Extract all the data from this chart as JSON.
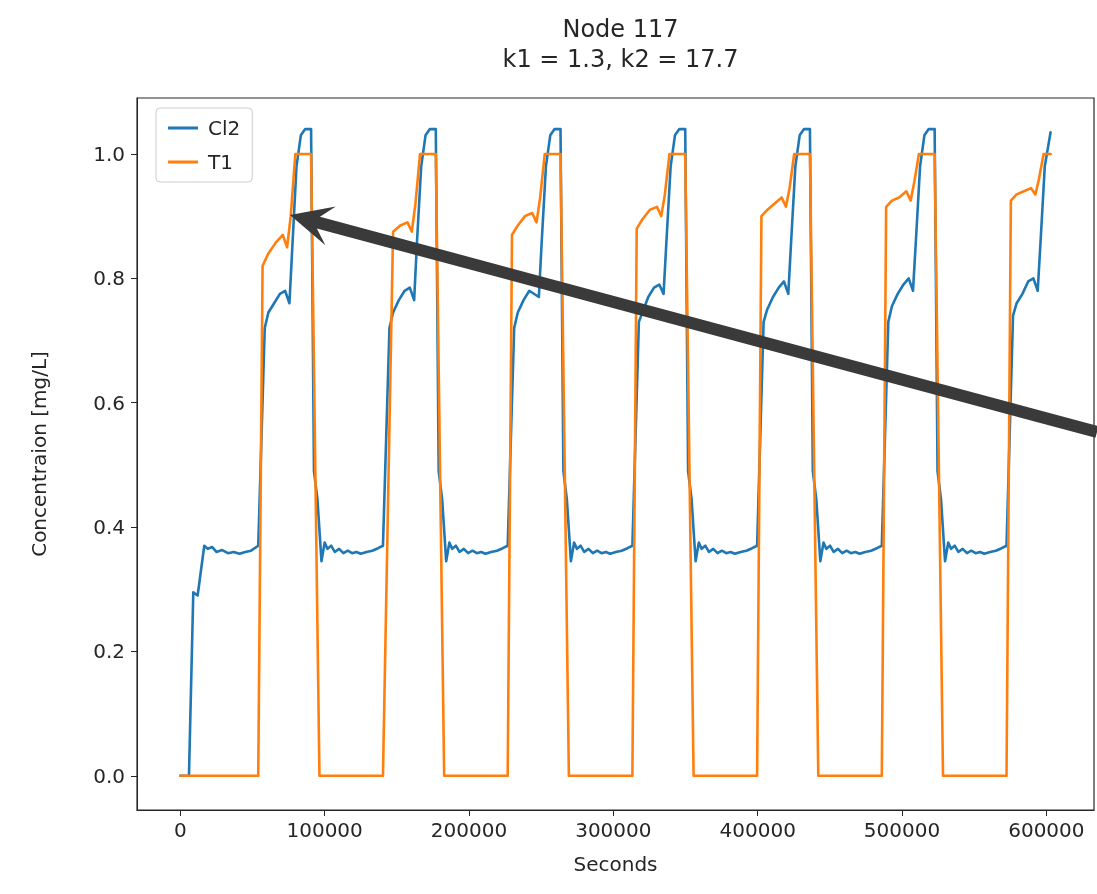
{
  "chart_data": {
    "type": "line",
    "title": "Node 117",
    "subtitle": "k1 = 1.3, k2 = 17.7",
    "xlabel": "Seconds",
    "ylabel": "Concentraion [mg/L]",
    "xlim": [
      -30000,
      633000
    ],
    "ylim": [
      -0.055,
      1.09
    ],
    "xticks": [
      0,
      100000,
      200000,
      300000,
      400000,
      500000,
      600000
    ],
    "yticks": [
      {
        "value": 0,
        "label": "0.0"
      },
      {
        "value": 0.2,
        "label": "0.2"
      },
      {
        "value": 0.4,
        "label": "0.4"
      },
      {
        "value": 0.6,
        "label": "0.6"
      },
      {
        "value": 0.8,
        "label": "0.8"
      },
      {
        "value": 1,
        "label": "1.0"
      }
    ],
    "grid": false,
    "legend": "top left",
    "marker": "none",
    "line_style": "solid",
    "series": [
      {
        "name": "Cl2",
        "color": "#1f77b4",
        "x": [
          0,
          6000,
          9000,
          12000,
          16600,
          19000,
          22000,
          25000,
          29000,
          33000,
          37000,
          41000,
          45000,
          49000,
          54000,
          58500,
          61000,
          65000,
          69000,
          72600,
          75600,
          77600,
          80500,
          83500,
          86500,
          90600,
          92600,
          95000,
          97800,
          100000,
          102000,
          104500,
          107000,
          110000,
          113000,
          116000,
          119000,
          122000,
          125000,
          129000,
          133000,
          137000,
          140400,
          144900,
          147400,
          151400,
          155400,
          159000,
          162000,
          164000,
          166900,
          169900,
          172900,
          177000,
          179000,
          181400,
          184200,
          186400,
          188400,
          190900,
          193400,
          196400,
          199400,
          202400,
          205400,
          208400,
          211400,
          215400,
          219400,
          223400,
          226800,
          231300,
          233800,
          237800,
          241800,
          245400,
          248400,
          250400,
          253300,
          256300,
          259300,
          263400,
          265400,
          267800,
          270600,
          272800,
          274800,
          277300,
          279800,
          282800,
          285800,
          288800,
          291800,
          294800,
          297800,
          301800,
          305800,
          309800,
          313200,
          317700,
          320200,
          324200,
          328200,
          331800,
          334800,
          336800,
          339700,
          342700,
          345700,
          349800,
          351800,
          354200,
          357000,
          359200,
          361200,
          363700,
          366200,
          369200,
          372200,
          375200,
          378200,
          381200,
          384200,
          388200,
          392200,
          396200,
          399600,
          404100,
          406600,
          410600,
          414600,
          418200,
          421200,
          423200,
          426100,
          429100,
          432100,
          436200,
          438200,
          440600,
          443400,
          445600,
          447600,
          450100,
          452600,
          455600,
          458600,
          461600,
          464600,
          467600,
          470600,
          474600,
          478600,
          482600,
          486000,
          490500,
          493000,
          497000,
          501000,
          504600,
          507600,
          509600,
          512500,
          515500,
          518500,
          522600,
          524600,
          527000,
          529800,
          532000,
          534000,
          536500,
          539000,
          542000,
          545000,
          548000,
          551000,
          554000,
          557000,
          561000,
          565000,
          569000,
          572400,
          576900,
          579400,
          583400,
          587400,
          591000,
          594000,
          596000,
          598900,
          602900
        ],
        "values": [
          0,
          0,
          0.295,
          0.29,
          0.37,
          0.365,
          0.368,
          0.36,
          0.363,
          0.358,
          0.36,
          0.357,
          0.36,
          0.362,
          0.37,
          0.72,
          0.745,
          0.76,
          0.775,
          0.78,
          0.76,
          0.85,
          0.98,
          1.03,
          1.04,
          1.04,
          0.49,
          0.445,
          0.345,
          0.375,
          0.365,
          0.37,
          0.36,
          0.365,
          0.358,
          0.362,
          0.358,
          0.36,
          0.357,
          0.36,
          0.362,
          0.366,
          0.37,
          0.72,
          0.745,
          0.765,
          0.78,
          0.785,
          0.765,
          0.86,
          0.98,
          1.03,
          1.04,
          1.04,
          0.49,
          0.445,
          0.345,
          0.375,
          0.365,
          0.37,
          0.36,
          0.365,
          0.358,
          0.362,
          0.358,
          0.36,
          0.357,
          0.36,
          0.362,
          0.366,
          0.37,
          0.72,
          0.745,
          0.765,
          0.78,
          null,
          0.77,
          0.86,
          0.98,
          1.03,
          1.04,
          1.04,
          0.49,
          0.445,
          0.345,
          0.375,
          0.365,
          0.37,
          0.36,
          0.365,
          0.358,
          0.362,
          0.358,
          0.36,
          0.357,
          0.36,
          0.362,
          0.366,
          0.37,
          0.73,
          null,
          0.77,
          0.785,
          0.79,
          0.775,
          0.86,
          0.98,
          1.03,
          1.04,
          1.04,
          0.49,
          0.445,
          0.345,
          0.375,
          0.365,
          0.37,
          0.36,
          0.365,
          0.358,
          0.362,
          0.358,
          0.36,
          0.357,
          0.36,
          0.362,
          0.366,
          0.37,
          0.73,
          0.75,
          0.77,
          0.785,
          0.795,
          0.775,
          0.86,
          0.98,
          1.03,
          1.04,
          1.04,
          0.49,
          0.445,
          0.345,
          0.375,
          0.365,
          0.37,
          0.36,
          0.365,
          0.358,
          0.362,
          0.358,
          0.36,
          0.357,
          0.36,
          0.362,
          0.366,
          0.37,
          0.73,
          0.755,
          0.775,
          0.79,
          0.8,
          0.78,
          0.86,
          0.98,
          1.03,
          1.04,
          1.04,
          0.49,
          0.445,
          0.345,
          0.375,
          0.365,
          0.37,
          0.36,
          0.365,
          0.358,
          0.362,
          0.358,
          0.36,
          0.357,
          0.36,
          0.362,
          0.366,
          0.37,
          0.74,
          0.76,
          0.775,
          0.795,
          0.8,
          0.78,
          0.86,
          0.98,
          1.035
        ]
      },
      {
        "name": "T1",
        "color": "#ff7f0e",
        "x": [
          0,
          54000,
          57000,
          61000,
          66000,
          71000,
          74000,
          76500,
          79700,
          90600,
          96400,
          140400,
          143400,
          147400,
          152400,
          157400,
          160400,
          162900,
          166100,
          177000,
          182800,
          226800,
          229800,
          233800,
          238800,
          243800,
          246800,
          249300,
          252500,
          263400,
          269200,
          313200,
          316200,
          320200,
          325200,
          330200,
          333200,
          335700,
          338900,
          349800,
          355600,
          399600,
          402600,
          406600,
          411600,
          416600,
          419600,
          422100,
          425300,
          436200,
          442000,
          486000,
          489000,
          493000,
          498000,
          503000,
          506000,
          508500,
          511700,
          522600,
          528400,
          572400,
          575400,
          579400,
          584400,
          589400,
          592400,
          594900,
          598100,
          603000
        ],
        "values": [
          0,
          0,
          0.82,
          0.84,
          0.857,
          0.87,
          0.85,
          0.9,
          1,
          1,
          0,
          0,
          null,
          0.875,
          0.885,
          0.89,
          0.875,
          0.92,
          1,
          1,
          0,
          0,
          0.87,
          0.885,
          0.9,
          0.905,
          0.89,
          0.93,
          1,
          1,
          0,
          0,
          0.88,
          0.895,
          0.91,
          0.915,
          0.9,
          0.935,
          1,
          1,
          0,
          0,
          0.9,
          0.91,
          0.92,
          0.93,
          0.915,
          0.945,
          1,
          1,
          0,
          0,
          0.915,
          0.925,
          0.93,
          0.94,
          0.925,
          0.955,
          1,
          1,
          0,
          0,
          0.925,
          0.935,
          0.94,
          0.945,
          0.935,
          0.96,
          1,
          1
        ]
      }
    ]
  }
}
